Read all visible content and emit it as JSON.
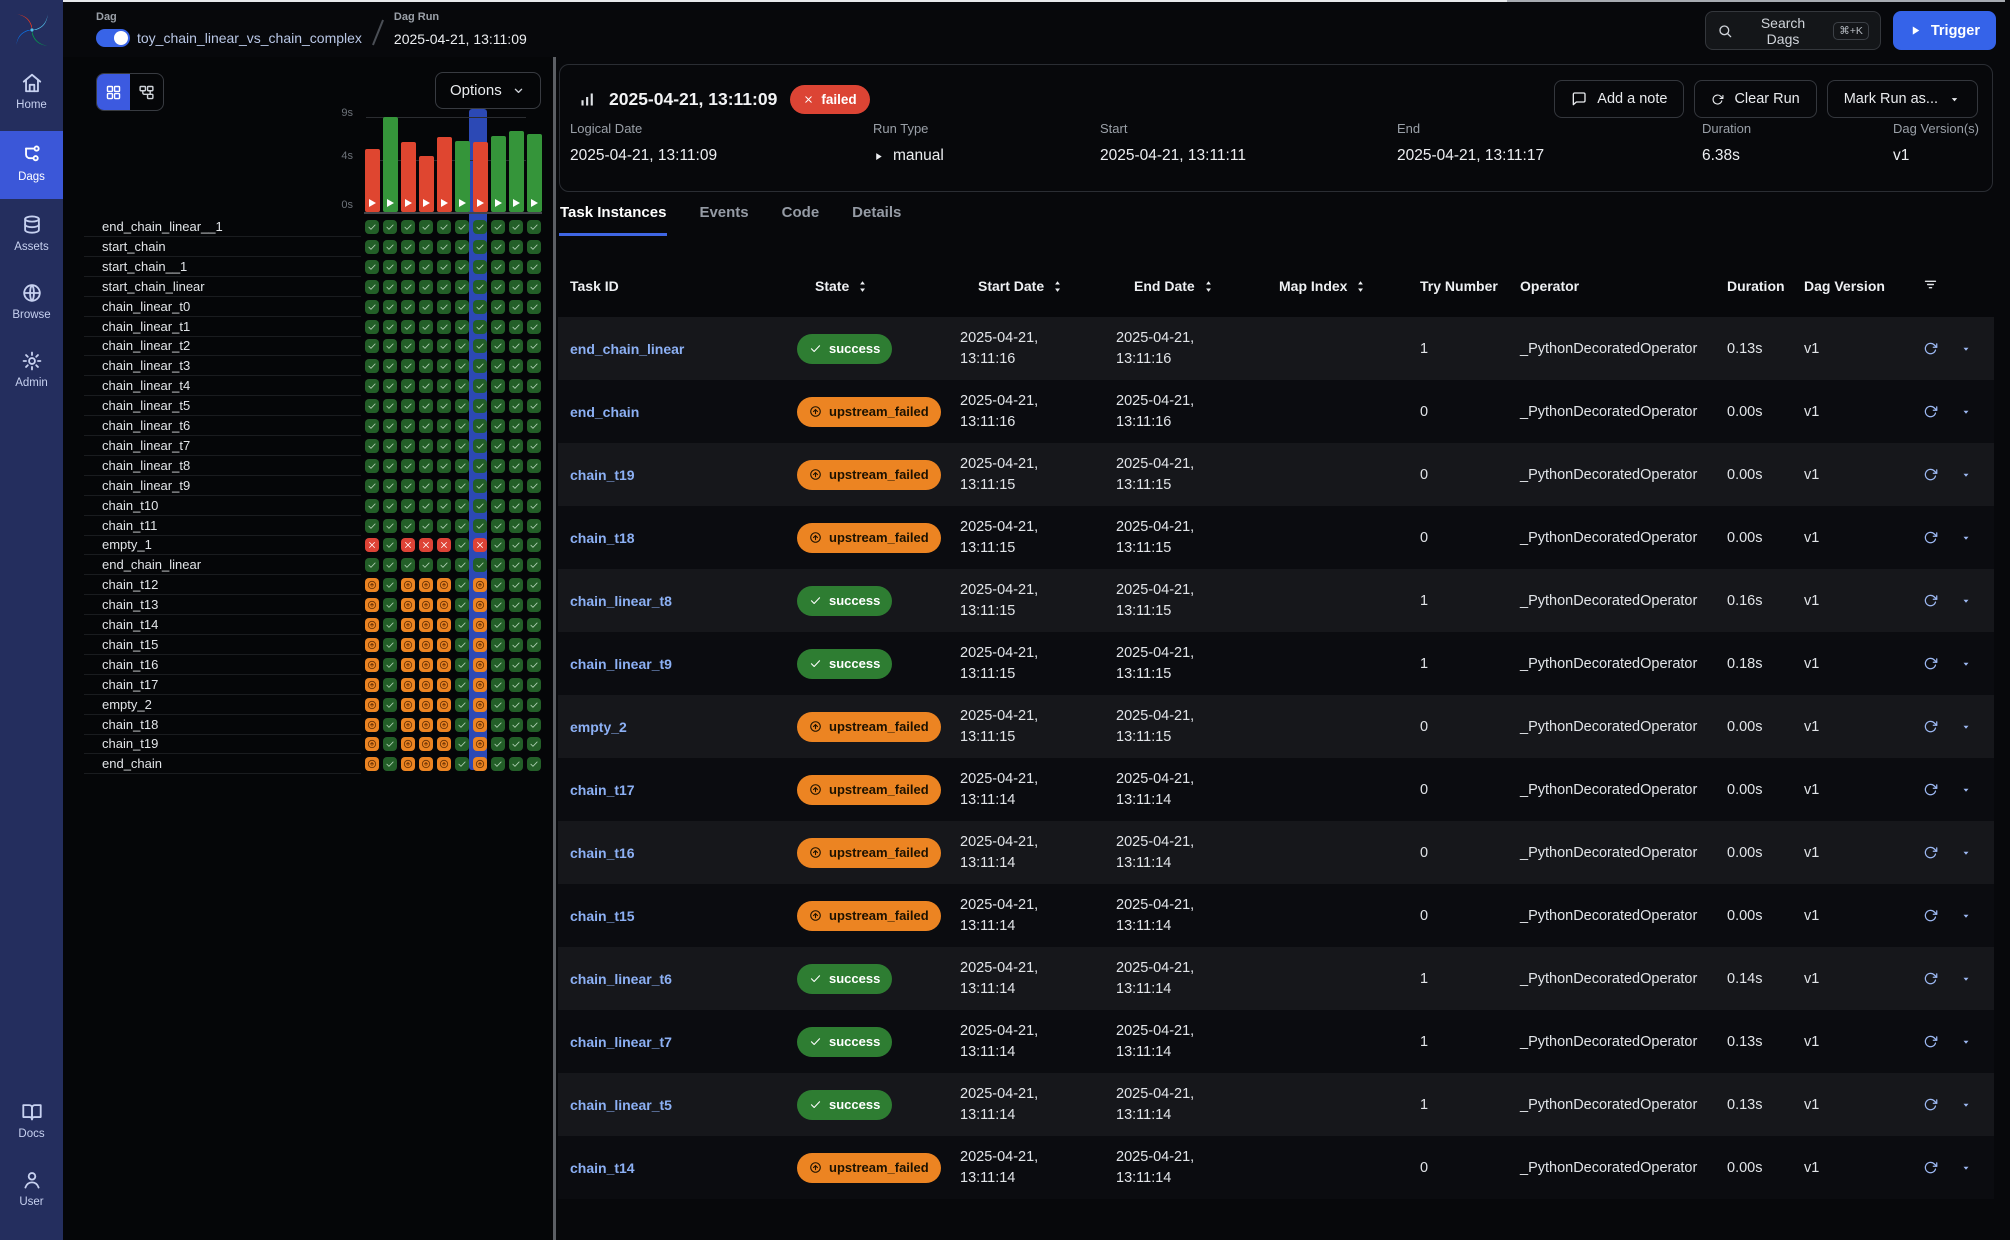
{
  "colors": {
    "accent_blue": "#3563e9",
    "sidebar_navy": "#242e5e",
    "success_green": "#2e7d32",
    "upstream_failed_orange": "#ec8422",
    "failed_red": "#dc4434",
    "task_link_blue": "#8cb0f4",
    "bar_green": "#35953a",
    "bar_red": "#df4630"
  },
  "topbar": {
    "dag_label": "Dag",
    "dag_toggle_on": true,
    "dag_name": "toy_chain_linear_vs_chain_complex",
    "dag_run_label": "Dag Run",
    "dag_run_value": "2025-04-21, 13:11:09",
    "search_label": "Search Dags",
    "search_shortcut": "⌘+K",
    "trigger_label": "Trigger"
  },
  "sidebar": {
    "items": [
      {
        "label": "Home",
        "icon": "home-icon",
        "active": false
      },
      {
        "label": "Dags",
        "icon": "dags-icon",
        "active": true
      },
      {
        "label": "Assets",
        "icon": "assets-icon",
        "active": false
      },
      {
        "label": "Browse",
        "icon": "browse-icon",
        "active": false
      },
      {
        "label": "Admin",
        "icon": "admin-icon",
        "active": false
      }
    ],
    "bottom_items": [
      {
        "label": "Docs",
        "icon": "docs-icon"
      },
      {
        "label": "User",
        "icon": "user-icon"
      }
    ]
  },
  "grid_panel": {
    "view_buttons": [
      {
        "icon": "grid-view-icon",
        "active": true
      },
      {
        "icon": "graph-view-icon",
        "active": false
      }
    ],
    "options_label": "Options",
    "axis": {
      "unit": "s",
      "labels": [
        {
          "text": "9s",
          "value": 9
        },
        {
          "text": "4s",
          "value": 4
        },
        {
          "text": "0s",
          "value": 0
        }
      ],
      "max": 9
    },
    "runs": [
      {
        "state": "failed",
        "duration_s": 5.8,
        "selected": false
      },
      {
        "state": "success",
        "duration_s": 8.7,
        "selected": false
      },
      {
        "state": "failed",
        "duration_s": 6.4,
        "selected": false
      },
      {
        "state": "failed",
        "duration_s": 5.1,
        "selected": false
      },
      {
        "state": "failed",
        "duration_s": 6.9,
        "selected": false
      },
      {
        "state": "success",
        "duration_s": 6.5,
        "selected": false
      },
      {
        "state": "failed",
        "duration_s": 6.38,
        "selected": true
      },
      {
        "state": "success",
        "duration_s": 7.0,
        "selected": false
      },
      {
        "state": "success",
        "duration_s": 7.4,
        "selected": false
      },
      {
        "state": "success",
        "duration_s": 7.2,
        "selected": false
      }
    ],
    "tasks": [
      {
        "id": "end_chain_linear__1",
        "on_failed_run": "success"
      },
      {
        "id": "start_chain",
        "on_failed_run": "success"
      },
      {
        "id": "start_chain__1",
        "on_failed_run": "success"
      },
      {
        "id": "start_chain_linear",
        "on_failed_run": "success"
      },
      {
        "id": "chain_linear_t0",
        "on_failed_run": "success"
      },
      {
        "id": "chain_linear_t1",
        "on_failed_run": "success"
      },
      {
        "id": "chain_linear_t2",
        "on_failed_run": "success"
      },
      {
        "id": "chain_linear_t3",
        "on_failed_run": "success"
      },
      {
        "id": "chain_linear_t4",
        "on_failed_run": "success"
      },
      {
        "id": "chain_linear_t5",
        "on_failed_run": "success"
      },
      {
        "id": "chain_linear_t6",
        "on_failed_run": "success"
      },
      {
        "id": "chain_linear_t7",
        "on_failed_run": "success"
      },
      {
        "id": "chain_linear_t8",
        "on_failed_run": "success"
      },
      {
        "id": "chain_linear_t9",
        "on_failed_run": "success"
      },
      {
        "id": "chain_t10",
        "on_failed_run": "success"
      },
      {
        "id": "chain_t11",
        "on_failed_run": "success"
      },
      {
        "id": "empty_1",
        "on_failed_run": "failed"
      },
      {
        "id": "end_chain_linear",
        "on_failed_run": "success"
      },
      {
        "id": "chain_t12",
        "on_failed_run": "upstream_failed"
      },
      {
        "id": "chain_t13",
        "on_failed_run": "upstream_failed"
      },
      {
        "id": "chain_t14",
        "on_failed_run": "upstream_failed"
      },
      {
        "id": "chain_t15",
        "on_failed_run": "upstream_failed"
      },
      {
        "id": "chain_t16",
        "on_failed_run": "upstream_failed"
      },
      {
        "id": "chain_t17",
        "on_failed_run": "upstream_failed"
      },
      {
        "id": "empty_2",
        "on_failed_run": "upstream_failed"
      },
      {
        "id": "chain_t18",
        "on_failed_run": "upstream_failed"
      },
      {
        "id": "chain_t19",
        "on_failed_run": "upstream_failed"
      },
      {
        "id": "end_chain",
        "on_failed_run": "upstream_failed"
      }
    ]
  },
  "run_panel": {
    "title": "2025-04-21, 13:11:09",
    "status": "failed",
    "actions": [
      {
        "label": "Add a note",
        "icon": "note-icon"
      },
      {
        "label": "Clear Run",
        "icon": "refresh-icon"
      },
      {
        "label": "Mark Run as...",
        "icon": "caret-down-icon"
      }
    ],
    "fields": [
      {
        "label": "Logical Date",
        "value": "2025-04-21, 13:11:09"
      },
      {
        "label": "Run Type",
        "value": "manual",
        "icon": "play-icon"
      },
      {
        "label": "Start",
        "value": "2025-04-21, 13:11:11"
      },
      {
        "label": "End",
        "value": "2025-04-21, 13:11:17"
      },
      {
        "label": "Duration",
        "value": "6.38s"
      },
      {
        "label": "Dag Version(s)",
        "value": "v1"
      }
    ],
    "tabs": [
      {
        "label": "Task Instances",
        "active": true
      },
      {
        "label": "Events",
        "active": false
      },
      {
        "label": "Code",
        "active": false
      },
      {
        "label": "Details",
        "active": false
      }
    ]
  },
  "table": {
    "columns": [
      {
        "label": "Task ID",
        "sortable": false
      },
      {
        "label": "State",
        "sortable": true
      },
      {
        "label": "Start Date",
        "sortable": true
      },
      {
        "label": "End Date",
        "sortable": true
      },
      {
        "label": "Map Index",
        "sortable": true
      },
      {
        "label": "Try Number",
        "sortable": false
      },
      {
        "label": "Operator",
        "sortable": false
      },
      {
        "label": "Duration",
        "sortable": false
      },
      {
        "label": "Dag Version",
        "sortable": false
      }
    ],
    "rows": [
      {
        "task_id": "end_chain_linear",
        "state": "success",
        "start_date": "2025-04-21,",
        "start_time": "13:11:16",
        "end_date": "2025-04-21,",
        "end_time": "13:11:16",
        "map_index": "",
        "try_number": "1",
        "operator": "_PythonDecoratedOperator",
        "duration": "0.13s",
        "dag_version": "v1"
      },
      {
        "task_id": "end_chain",
        "state": "upstream_failed",
        "start_date": "2025-04-21,",
        "start_time": "13:11:16",
        "end_date": "2025-04-21,",
        "end_time": "13:11:16",
        "map_index": "",
        "try_number": "0",
        "operator": "_PythonDecoratedOperator",
        "duration": "0.00s",
        "dag_version": "v1"
      },
      {
        "task_id": "chain_t19",
        "state": "upstream_failed",
        "start_date": "2025-04-21,",
        "start_time": "13:11:15",
        "end_date": "2025-04-21,",
        "end_time": "13:11:15",
        "map_index": "",
        "try_number": "0",
        "operator": "_PythonDecoratedOperator",
        "duration": "0.00s",
        "dag_version": "v1"
      },
      {
        "task_id": "chain_t18",
        "state": "upstream_failed",
        "start_date": "2025-04-21,",
        "start_time": "13:11:15",
        "end_date": "2025-04-21,",
        "end_time": "13:11:15",
        "map_index": "",
        "try_number": "0",
        "operator": "_PythonDecoratedOperator",
        "duration": "0.00s",
        "dag_version": "v1"
      },
      {
        "task_id": "chain_linear_t8",
        "state": "success",
        "start_date": "2025-04-21,",
        "start_time": "13:11:15",
        "end_date": "2025-04-21,",
        "end_time": "13:11:15",
        "map_index": "",
        "try_number": "1",
        "operator": "_PythonDecoratedOperator",
        "duration": "0.16s",
        "dag_version": "v1"
      },
      {
        "task_id": "chain_linear_t9",
        "state": "success",
        "start_date": "2025-04-21,",
        "start_time": "13:11:15",
        "end_date": "2025-04-21,",
        "end_time": "13:11:15",
        "map_index": "",
        "try_number": "1",
        "operator": "_PythonDecoratedOperator",
        "duration": "0.18s",
        "dag_version": "v1"
      },
      {
        "task_id": "empty_2",
        "state": "upstream_failed",
        "start_date": "2025-04-21,",
        "start_time": "13:11:15",
        "end_date": "2025-04-21,",
        "end_time": "13:11:15",
        "map_index": "",
        "try_number": "0",
        "operator": "_PythonDecoratedOperator",
        "duration": "0.00s",
        "dag_version": "v1"
      },
      {
        "task_id": "chain_t17",
        "state": "upstream_failed",
        "start_date": "2025-04-21,",
        "start_time": "13:11:14",
        "end_date": "2025-04-21,",
        "end_time": "13:11:14",
        "map_index": "",
        "try_number": "0",
        "operator": "_PythonDecoratedOperator",
        "duration": "0.00s",
        "dag_version": "v1"
      },
      {
        "task_id": "chain_t16",
        "state": "upstream_failed",
        "start_date": "2025-04-21,",
        "start_time": "13:11:14",
        "end_date": "2025-04-21,",
        "end_time": "13:11:14",
        "map_index": "",
        "try_number": "0",
        "operator": "_PythonDecoratedOperator",
        "duration": "0.00s",
        "dag_version": "v1"
      },
      {
        "task_id": "chain_t15",
        "state": "upstream_failed",
        "start_date": "2025-04-21,",
        "start_time": "13:11:14",
        "end_date": "2025-04-21,",
        "end_time": "13:11:14",
        "map_index": "",
        "try_number": "0",
        "operator": "_PythonDecoratedOperator",
        "duration": "0.00s",
        "dag_version": "v1"
      },
      {
        "task_id": "chain_linear_t6",
        "state": "success",
        "start_date": "2025-04-21,",
        "start_time": "13:11:14",
        "end_date": "2025-04-21,",
        "end_time": "13:11:14",
        "map_index": "",
        "try_number": "1",
        "operator": "_PythonDecoratedOperator",
        "duration": "0.14s",
        "dag_version": "v1"
      },
      {
        "task_id": "chain_linear_t7",
        "state": "success",
        "start_date": "2025-04-21,",
        "start_time": "13:11:14",
        "end_date": "2025-04-21,",
        "end_time": "13:11:14",
        "map_index": "",
        "try_number": "1",
        "operator": "_PythonDecoratedOperator",
        "duration": "0.13s",
        "dag_version": "v1"
      },
      {
        "task_id": "chain_linear_t5",
        "state": "success",
        "start_date": "2025-04-21,",
        "start_time": "13:11:14",
        "end_date": "2025-04-21,",
        "end_time": "13:11:14",
        "map_index": "",
        "try_number": "1",
        "operator": "_PythonDecoratedOperator",
        "duration": "0.13s",
        "dag_version": "v1"
      },
      {
        "task_id": "chain_t14",
        "state": "upstream_failed",
        "start_date": "2025-04-21,",
        "start_time": "13:11:14",
        "end_date": "2025-04-21,",
        "end_time": "13:11:14",
        "map_index": "",
        "try_number": "0",
        "operator": "_PythonDecoratedOperator",
        "duration": "0.00s",
        "dag_version": "v1"
      }
    ]
  }
}
